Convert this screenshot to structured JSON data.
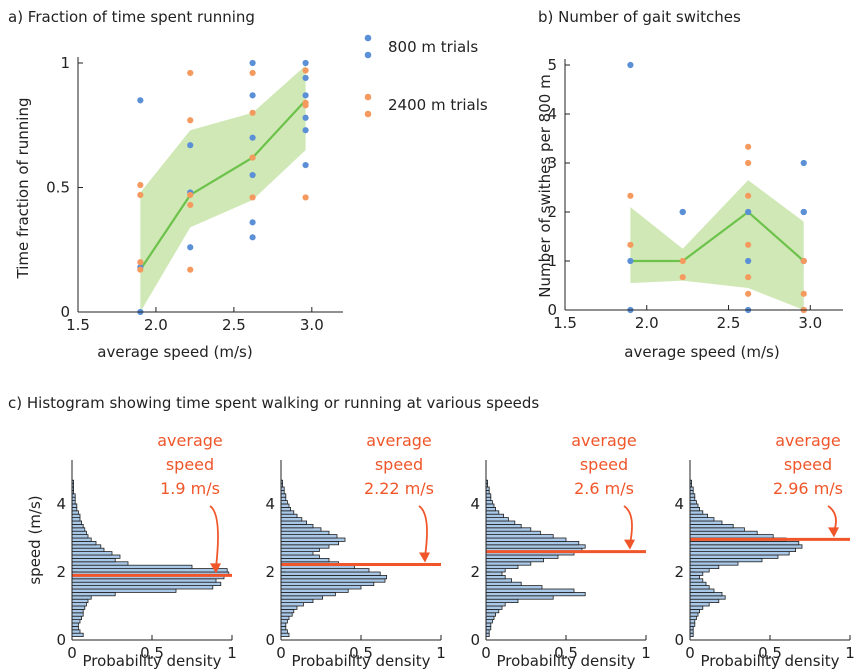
{
  "colors": {
    "blue": "#5b8fd6",
    "orange": "#f59a5f",
    "green": "#6cc24a",
    "band": "#c8e4a8",
    "red": "#f0562a",
    "barFill": "#a9c7e6",
    "barEdge": "#1f1f1f"
  },
  "chart_data": [
    {
      "id": "a",
      "type": "scatter",
      "title": "a) Fraction of time spent running",
      "xlabel": "average speed (m/s)",
      "ylabel": "Time fraction of running",
      "xlim": [
        1.5,
        3.2
      ],
      "ylim": [
        0,
        1
      ],
      "xticks": [
        "1.5",
        "2.0",
        "2.5",
        "3.0"
      ],
      "xtick_values": [
        1.5,
        2.0,
        2.5,
        3.0
      ],
      "yticks": [
        "0",
        "0.5",
        "1"
      ],
      "ytick_values": [
        0,
        0.5,
        1
      ],
      "legend": [
        {
          "name": "800 m trials",
          "color": "blue"
        },
        {
          "name": "2400 m trials",
          "color": "orange"
        }
      ],
      "series": [
        {
          "name": "800 m trials",
          "color": "blue",
          "points": [
            [
              1.9,
              0.85
            ],
            [
              1.9,
              0.18
            ],
            [
              1.9,
              0.0
            ],
            [
              2.22,
              0.67
            ],
            [
              2.22,
              0.48
            ],
            [
              2.22,
              0.26
            ],
            [
              2.62,
              1.0
            ],
            [
              2.62,
              0.87
            ],
            [
              2.62,
              0.7
            ],
            [
              2.62,
              0.55
            ],
            [
              2.62,
              0.36
            ],
            [
              2.62,
              0.3
            ],
            [
              2.96,
              1.0
            ],
            [
              2.96,
              0.94
            ],
            [
              2.96,
              0.87
            ],
            [
              2.96,
              0.78
            ],
            [
              2.96,
              0.73
            ],
            [
              2.96,
              0.59
            ]
          ]
        },
        {
          "name": "2400 m trials",
          "color": "orange",
          "points": [
            [
              1.9,
              0.51
            ],
            [
              1.9,
              0.47
            ],
            [
              1.9,
              0.2
            ],
            [
              1.9,
              0.17
            ],
            [
              2.22,
              0.96
            ],
            [
              2.22,
              0.77
            ],
            [
              2.22,
              0.47
            ],
            [
              2.22,
              0.43
            ],
            [
              2.22,
              0.17
            ],
            [
              2.62,
              0.96
            ],
            [
              2.62,
              0.8
            ],
            [
              2.62,
              0.62
            ],
            [
              2.62,
              0.46
            ],
            [
              2.96,
              0.97
            ],
            [
              2.96,
              0.84
            ],
            [
              2.96,
              0.83
            ],
            [
              2.96,
              0.46
            ]
          ]
        }
      ],
      "median_line": {
        "x": [
          1.9,
          2.22,
          2.62,
          2.96
        ],
        "y": [
          0.17,
          0.47,
          0.62,
          0.85
        ]
      },
      "band": {
        "x": [
          1.9,
          2.22,
          2.62,
          2.96
        ],
        "upper": [
          0.48,
          0.73,
          0.8,
          0.99
        ],
        "lower": [
          0.0,
          0.34,
          0.45,
          0.65
        ]
      }
    },
    {
      "id": "b",
      "type": "scatter",
      "title": "b) Number of gait switches",
      "xlabel": "average speed (m/s)",
      "ylabel": "Number of swithes per 800 m",
      "xlim": [
        1.5,
        3.2
      ],
      "ylim": [
        0,
        5
      ],
      "xticks": [
        "1.5",
        "2.0",
        "2.5",
        "3.0"
      ],
      "xtick_values": [
        1.5,
        2.0,
        2.5,
        3.0
      ],
      "yticks": [
        "0",
        "1",
        "2",
        "3",
        "4",
        "5"
      ],
      "ytick_values": [
        0,
        1,
        2,
        3,
        4,
        5
      ],
      "series": [
        {
          "name": "800 m trials",
          "color": "blue",
          "points": [
            [
              1.9,
              5
            ],
            [
              1.9,
              1
            ],
            [
              1.9,
              0
            ],
            [
              2.22,
              2
            ],
            [
              2.22,
              2
            ],
            [
              2.62,
              2
            ],
            [
              2.62,
              1
            ],
            [
              2.62,
              0
            ],
            [
              2.96,
              3
            ],
            [
              2.96,
              2
            ],
            [
              2.96,
              2
            ],
            [
              2.96,
              1
            ],
            [
              2.96,
              0
            ]
          ]
        },
        {
          "name": "2400 m trials",
          "color": "orange",
          "points": [
            [
              1.9,
              2.33
            ],
            [
              1.9,
              1.33
            ],
            [
              2.22,
              1.0
            ],
            [
              2.22,
              0.67
            ],
            [
              2.62,
              3.33
            ],
            [
              2.62,
              3.0
            ],
            [
              2.62,
              2.33
            ],
            [
              2.62,
              1.33
            ],
            [
              2.62,
              0.67
            ],
            [
              2.62,
              0.33
            ],
            [
              2.96,
              1.0
            ],
            [
              2.96,
              0.33
            ],
            [
              2.96,
              0.0
            ]
          ]
        }
      ],
      "median_line": {
        "x": [
          1.9,
          2.22,
          2.62,
          2.96
        ],
        "y": [
          1.0,
          1.0,
          2.0,
          1.0
        ]
      },
      "band": {
        "x": [
          1.9,
          2.22,
          2.62,
          2.96
        ],
        "upper": [
          2.1,
          1.25,
          2.65,
          1.8
        ],
        "lower": [
          0.55,
          0.6,
          0.45,
          0.0
        ]
      }
    },
    {
      "id": "c",
      "type": "histogram",
      "title": "c) Histogram showing time spent walking or running at various speeds",
      "ylabel": "speed (m/s)",
      "xlabel": "Probability density",
      "xlim": [
        0,
        1
      ],
      "ylim": [
        0,
        5
      ],
      "xticks": [
        "0",
        "0.5",
        "1"
      ],
      "xtick_values": [
        0,
        0.5,
        1
      ],
      "yticks": [
        "0",
        "2",
        "4"
      ],
      "ytick_values": [
        0,
        2,
        4
      ],
      "bin_width": 0.1,
      "bin_start": 0.1,
      "panels": [
        {
          "annotation": [
            "average",
            "speed",
            "1.9 m/s"
          ],
          "average_speed": 1.9,
          "densities": [
            0.07,
            0.05,
            0.04,
            0.04,
            0.05,
            0.06,
            0.07,
            0.07,
            0.08,
            0.09,
            0.1,
            0.12,
            0.27,
            0.65,
            0.88,
            0.93,
            0.9,
            0.95,
            0.98,
            0.97,
            0.75,
            0.35,
            0.27,
            0.3,
            0.25,
            0.2,
            0.18,
            0.15,
            0.12,
            0.1,
            0.09,
            0.08,
            0.07,
            0.06,
            0.05,
            0.05,
            0.04,
            0.03,
            0.03,
            0.02,
            0.02,
            0.02,
            0.01,
            0.01,
            0.01,
            0.01
          ]
        },
        {
          "annotation": [
            "average",
            "speed",
            "2.22 m/s"
          ],
          "average_speed": 2.22,
          "densities": [
            0.05,
            0.04,
            0.03,
            0.03,
            0.04,
            0.05,
            0.07,
            0.08,
            0.1,
            0.14,
            0.2,
            0.26,
            0.34,
            0.42,
            0.5,
            0.58,
            0.65,
            0.66,
            0.62,
            0.55,
            0.46,
            0.36,
            0.3,
            0.24,
            0.2,
            0.24,
            0.3,
            0.36,
            0.4,
            0.35,
            0.3,
            0.25,
            0.2,
            0.16,
            0.13,
            0.1,
            0.08,
            0.06,
            0.05,
            0.04,
            0.03,
            0.03,
            0.02,
            0.02,
            0.01,
            0.01
          ]
        },
        {
          "annotation": [
            "average",
            "speed",
            "2.6 m/s"
          ],
          "average_speed": 2.6,
          "densities": [
            0.02,
            0.02,
            0.03,
            0.03,
            0.04,
            0.05,
            0.06,
            0.08,
            0.1,
            0.12,
            0.2,
            0.42,
            0.62,
            0.55,
            0.35,
            0.22,
            0.16,
            0.12,
            0.1,
            0.12,
            0.2,
            0.28,
            0.36,
            0.45,
            0.55,
            0.6,
            0.62,
            0.58,
            0.5,
            0.42,
            0.34,
            0.28,
            0.22,
            0.18,
            0.14,
            0.11,
            0.08,
            0.06,
            0.05,
            0.04,
            0.03,
            0.03,
            0.02,
            0.02,
            0.01,
            0.01
          ]
        },
        {
          "annotation": [
            "average",
            "speed",
            "2.96 m/s"
          ],
          "average_speed": 2.96,
          "densities": [
            0.02,
            0.02,
            0.02,
            0.03,
            0.03,
            0.04,
            0.05,
            0.06,
            0.08,
            0.12,
            0.18,
            0.22,
            0.2,
            0.15,
            0.12,
            0.1,
            0.08,
            0.06,
            0.08,
            0.12,
            0.18,
            0.3,
            0.45,
            0.55,
            0.62,
            0.66,
            0.7,
            0.68,
            0.6,
            0.52,
            0.42,
            0.34,
            0.27,
            0.2,
            0.15,
            0.11,
            0.08,
            0.06,
            0.05,
            0.04,
            0.03,
            0.03,
            0.02,
            0.02,
            0.01,
            0.01
          ]
        }
      ]
    }
  ]
}
